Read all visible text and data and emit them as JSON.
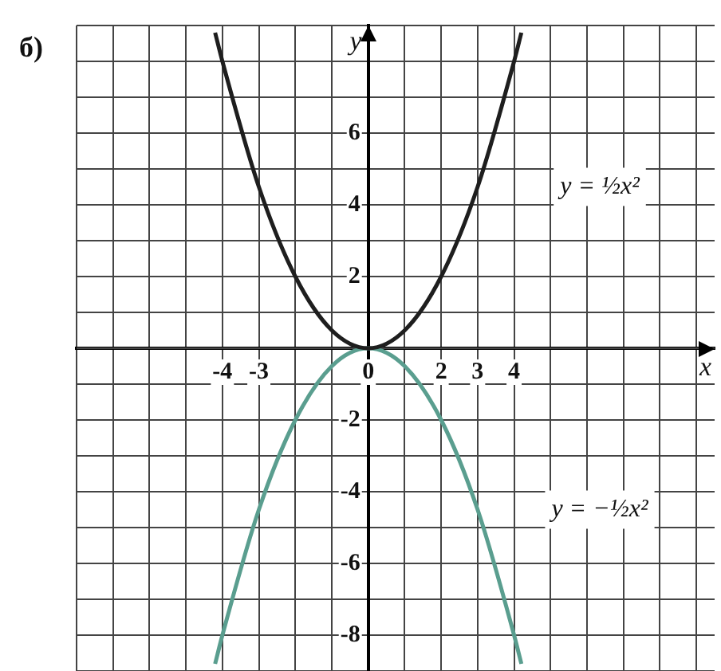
{
  "chart_data": {
    "type": "line",
    "title": "б)",
    "xlabel": "x",
    "ylabel": "y",
    "series": [
      {
        "type": "line",
        "color": "#1e1e1e",
        "x": [
          -4.2,
          -4,
          -3,
          -2,
          -1,
          0,
          1,
          2,
          3,
          4,
          4.2
        ],
        "values": [
          8.8,
          8,
          4.5,
          2,
          0.5,
          0,
          0.5,
          2,
          4.5,
          8,
          8.8
        ]
      },
      {
        "type": "line",
        "color": "#5a9e8f",
        "x": [
          -4.2,
          -4,
          -3,
          -2,
          -1,
          0,
          1,
          2,
          3,
          4,
          4.2
        ],
        "values": [
          -8.8,
          -8,
          -4.5,
          -2,
          -0.5,
          0,
          -0.5,
          -2,
          -4.5,
          -8,
          -8.8
        ]
      }
    ],
    "xlim": [
      -8,
      9.5
    ],
    "ylim": [
      -9,
      9
    ],
    "xticks": [
      {
        "value": -8,
        "label": null
      },
      {
        "value": -7,
        "label": null
      },
      {
        "value": -6,
        "label": null
      },
      {
        "value": -5,
        "label": null
      },
      -4,
      -3,
      {
        "value": -2,
        "label": null
      },
      {
        "value": -1,
        "label": null
      },
      0,
      {
        "value": 1,
        "label": null
      },
      2,
      3,
      4,
      {
        "value": 5,
        "label": null
      },
      {
        "value": 6,
        "label": null
      },
      {
        "value": 7,
        "label": null
      },
      {
        "value": 8,
        "label": null
      },
      {
        "value": 9,
        "label": null
      }
    ],
    "yticks": [
      {
        "value": -9,
        "label": null
      },
      -8,
      {
        "value": -7,
        "label": null
      },
      -6,
      {
        "value": -5,
        "label": null
      },
      -4,
      {
        "value": -3,
        "label": null
      },
      -2,
      {
        "value": -1,
        "label": null
      },
      {
        "value": 0,
        "label": null
      },
      {
        "value": 1,
        "label": null
      },
      2,
      {
        "value": 3,
        "label": null
      },
      4,
      {
        "value": 5,
        "label": null
      },
      6,
      {
        "value": 7,
        "label": null
      },
      {
        "value": 8,
        "label": null
      },
      {
        "value": 9,
        "label": null
      }
    ],
    "annotations": [
      "y = ½x²",
      "y = −½x²"
    ],
    "grid": true,
    "legend": false,
    "marker": "none",
    "line_style": "solid"
  }
}
